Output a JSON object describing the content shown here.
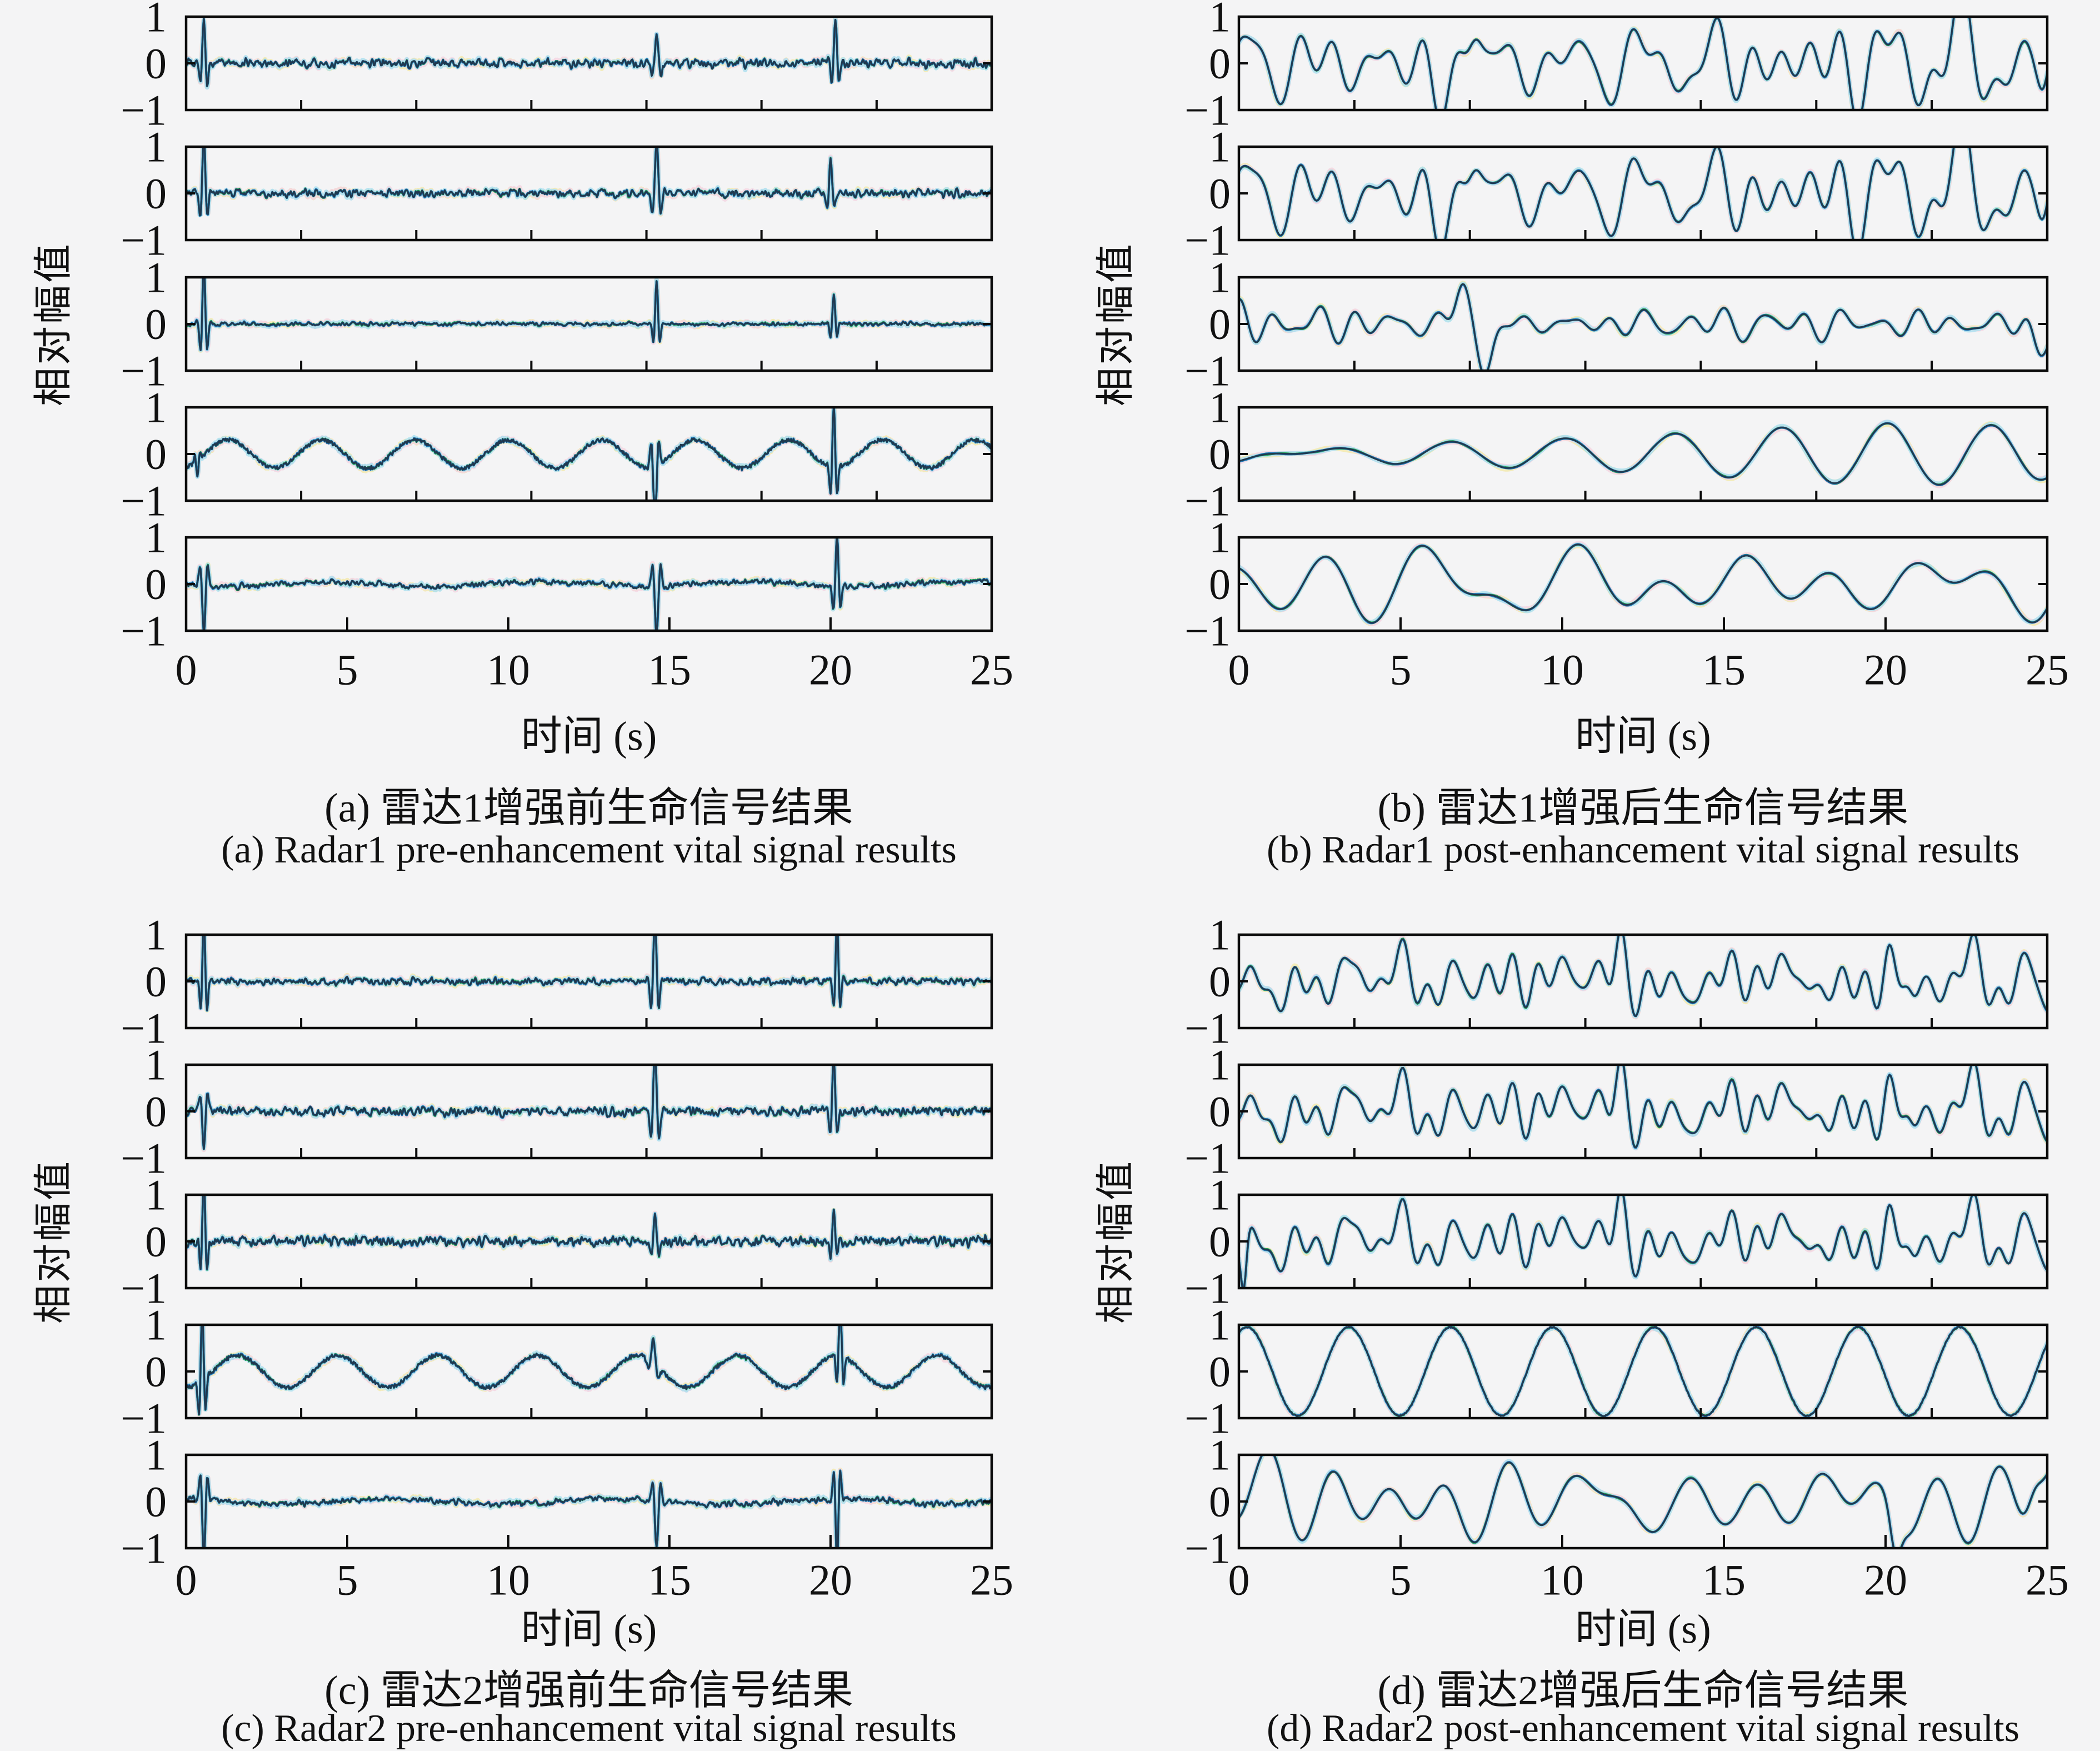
{
  "figure": {
    "background": "#f4f4f5",
    "frame_color": "#0b0b0b",
    "text_color": "#111111"
  },
  "chart_data": {
    "type": "line",
    "xlabel": "时间 (s)",
    "ylabel": "相对幅值",
    "x_range": [
      0,
      25
    ],
    "y_range": [
      -1,
      1
    ],
    "x_ticks": [
      0,
      5,
      10,
      15,
      20,
      25
    ],
    "x_tick_labels": [
      "0",
      "5",
      "10",
      "15",
      "20",
      "25"
    ],
    "y_ticks": [
      1,
      0,
      -1
    ],
    "y_tick_labels": [
      "1",
      "0",
      "−1"
    ],
    "grid": false,
    "legend": "none",
    "trace_layers": [
      {
        "name": "halo-yellow",
        "color": "#f2e9a9",
        "width": 9
      },
      {
        "name": "halo-pink",
        "color": "#f4d4e2",
        "width": 9
      },
      {
        "name": "halo-cyan",
        "color": "#a9e0f0",
        "width": 8
      },
      {
        "name": "trace-green",
        "color": "#27a35c",
        "width": 4
      },
      {
        "name": "trace-blue",
        "color": "#1f77b4",
        "width": 4
      },
      {
        "name": "trace-dark",
        "color": "#20394f",
        "width": 3
      }
    ],
    "panels": [
      {
        "id": "a",
        "caption_zh": "(a) 雷达1增强前生命信号结果",
        "caption_en": "(a) Radar1 pre-enhancement vital signal results",
        "subplots": [
          {
            "base": "noise",
            "noise": 0.09,
            "seed": 101,
            "spikes": [
              [
                0.55,
                1.0,
                0.13
              ],
              [
                14.6,
                0.62,
                0.16
              ],
              [
                20.15,
                0.95,
                0.13
              ]
            ]
          },
          {
            "base": "noise",
            "noise": 0.08,
            "seed": 102,
            "spikes": [
              [
                0.55,
                1.25,
                0.13
              ],
              [
                14.6,
                1.05,
                0.15
              ],
              [
                20.0,
                0.7,
                0.13
              ]
            ]
          },
          {
            "base": "noise",
            "noise": 0.035,
            "seed": 103,
            "spikes": [
              [
                0.55,
                1.3,
                0.12
              ],
              [
                14.6,
                0.9,
                0.12
              ],
              [
                20.1,
                0.62,
                0.12
              ]
            ]
          },
          {
            "base": "sine",
            "amp": 0.3,
            "period": 2.9,
            "phase": 0.575,
            "noise": 0.04,
            "seed": 104,
            "spikes": [
              [
                0.35,
                -0.35,
                0.1
              ],
              [
                14.55,
                -1.25,
                0.14
              ],
              [
                20.1,
                1.35,
                0.12
              ]
            ]
          },
          {
            "base": "noise",
            "noise": 0.055,
            "wobble": [
              0.05,
              6.5
            ],
            "seed": 105,
            "spikes": [
              [
                0.55,
                -1.0,
                0.14
              ],
              [
                14.6,
                -1.05,
                0.15
              ],
              [
                20.2,
                1.1,
                0.13
              ]
            ]
          }
        ]
      },
      {
        "id": "b",
        "caption_zh": "(b) 雷达1增强后生命信号结果",
        "caption_en": "(b) Radar1 post-enhancement vital signal results",
        "subplots": [
          {
            "base": "smooth",
            "amp": 0.72,
            "period": 1.65,
            "spread": 0.65,
            "seed": 111,
            "bumps": [
              [
                6.2,
                -0.75,
                0.35
              ],
              [
                7.3,
                0.75,
                0.28
              ],
              [
                22.1,
                0.55,
                0.35
              ],
              [
                24.9,
                -0.8,
                0.25
              ]
            ]
          },
          {
            "base": "smooth",
            "amp": 0.74,
            "period": 1.65,
            "spread": 0.65,
            "seed": 111,
            "bumps": [
              [
                6.2,
                -0.75,
                0.35
              ],
              [
                7.3,
                0.75,
                0.28
              ],
              [
                22.1,
                0.55,
                0.35
              ],
              [
                24.9,
                -0.8,
                0.25
              ]
            ]
          },
          {
            "base": "smooth",
            "amp": 0.3,
            "period": 1.5,
            "spread": 0.6,
            "seed": 113,
            "bumps": [
              [
                6.9,
                0.85,
                0.3
              ],
              [
                7.6,
                -1.0,
                0.32
              ],
              [
                24.7,
                -0.5,
                0.3
              ]
            ]
          },
          {
            "base": "smooth",
            "amp": 0.9,
            "period": 3.4,
            "spread": 0.14,
            "seed": 114
          },
          {
            "base": "smooth",
            "amp": 0.88,
            "period": 3.9,
            "spread": 0.5,
            "seed": 115
          }
        ]
      },
      {
        "id": "c",
        "caption_zh": "(c) 雷达2增强前生命信号结果",
        "caption_en": "(c) Radar2 pre-enhancement vital signal results",
        "subplots": [
          {
            "base": "noise",
            "noise": 0.07,
            "seed": 121,
            "spikes": [
              [
                0.55,
                1.35,
                0.12
              ],
              [
                14.55,
                1.3,
                0.14
              ],
              [
                20.2,
                1.25,
                0.12
              ]
            ]
          },
          {
            "base": "noise",
            "noise": 0.09,
            "seed": 122,
            "spikes": [
              [
                0.55,
                -0.8,
                0.14
              ],
              [
                14.55,
                1.25,
                0.15
              ],
              [
                20.1,
                1.2,
                0.13
              ]
            ]
          },
          {
            "base": "noise",
            "noise": 0.1,
            "seed": 123,
            "spikes": [
              [
                0.55,
                1.35,
                0.12
              ],
              [
                14.55,
                0.6,
                0.14
              ],
              [
                20.1,
                0.7,
                0.12
              ]
            ]
          },
          {
            "base": "sine",
            "amp": 0.34,
            "period": 3.1,
            "phase": 0.825,
            "noise": 0.04,
            "seed": 124,
            "spikes": [
              [
                0.5,
                1.55,
                0.12
              ],
              [
                14.5,
                0.5,
                0.18
              ],
              [
                20.3,
                1.35,
                0.12
              ]
            ]
          },
          {
            "base": "noise",
            "noise": 0.06,
            "wobble": [
              0.055,
              7.0
            ],
            "seed": 125,
            "spikes": [
              [
                0.55,
                -1.25,
                0.13
              ],
              [
                14.6,
                -0.95,
                0.15
              ],
              [
                20.2,
                -1.35,
                0.12
              ]
            ]
          }
        ]
      },
      {
        "id": "d",
        "caption_zh": "(d) 雷达2增强后生命信号结果",
        "caption_en": "(d) Radar2 post-enhancement vital signal results",
        "subplots": [
          {
            "base": "smooth",
            "amp": 0.5,
            "period": 0.95,
            "spread": 0.75,
            "seed": 131,
            "wobble": [
              0.18,
              6.0
            ],
            "bumps": [
              [
                7.6,
                0.55,
                0.3
              ],
              [
                11.8,
                0.75,
                0.22
              ],
              [
                20.1,
                0.85,
                0.25
              ],
              [
                20.9,
                -0.8,
                0.25
              ]
            ]
          },
          {
            "base": "smooth",
            "amp": 0.52,
            "period": 0.95,
            "spread": 0.75,
            "seed": 131,
            "wobble": [
              0.18,
              6.0
            ],
            "bumps": [
              [
                7.6,
                0.55,
                0.3
              ],
              [
                11.8,
                0.75,
                0.22
              ],
              [
                20.1,
                0.85,
                0.25
              ],
              [
                20.9,
                -0.8,
                0.25
              ]
            ]
          },
          {
            "base": "smooth",
            "amp": 0.5,
            "period": 0.95,
            "spread": 0.75,
            "seed": 131,
            "wobble": [
              0.18,
              6.0
            ],
            "bumps": [
              [
                0.15,
                -1.1,
                0.12
              ],
              [
                7.6,
                0.55,
                0.3
              ],
              [
                11.8,
                0.75,
                0.22
              ],
              [
                20.1,
                0.85,
                0.25
              ],
              [
                20.9,
                -0.8,
                0.25
              ]
            ]
          },
          {
            "base": "sine",
            "amp": 0.95,
            "period": 3.15,
            "phase": 2.61,
            "noise": 0.012,
            "seed": 134
          },
          {
            "base": "smooth",
            "amp": 0.72,
            "period": 2.9,
            "spread": 0.55,
            "seed": 135,
            "wobble": [
              0.15,
              8.0
            ],
            "bumps": [
              [
                20.3,
                -0.8,
                0.22
              ],
              [
                24.6,
                0.6,
                0.3
              ]
            ]
          }
        ]
      }
    ]
  }
}
